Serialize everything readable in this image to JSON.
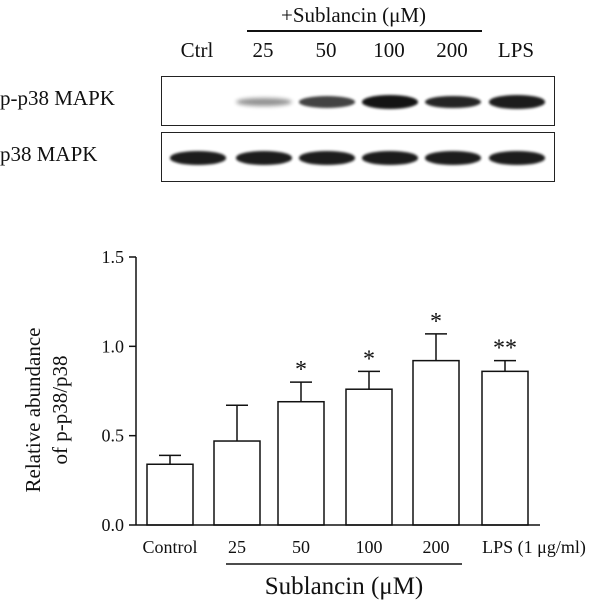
{
  "blot": {
    "treatment_header": "+Sublancin (μM)",
    "lanes": [
      "Ctrl",
      "25",
      "50",
      "100",
      "200",
      "LPS"
    ],
    "rows": [
      {
        "label": "p-p38 MAPK",
        "band_intensity": [
          0.0,
          0.25,
          0.7,
          0.95,
          0.85,
          0.9
        ]
      },
      {
        "label": "p38 MAPK",
        "band_intensity": [
          0.9,
          0.9,
          0.9,
          0.9,
          0.9,
          0.9
        ]
      }
    ]
  },
  "chart_data": {
    "type": "bar",
    "categories": [
      "Control",
      "25",
      "50",
      "100",
      "200",
      "LPS (1 μg/ml)"
    ],
    "values": [
      0.34,
      0.47,
      0.69,
      0.76,
      0.92,
      0.86
    ],
    "errors": [
      0.05,
      0.2,
      0.11,
      0.1,
      0.15,
      0.06
    ],
    "significance": [
      "",
      "",
      "*",
      "*",
      "*",
      "**"
    ],
    "ylabel_line1": "Relative abundance",
    "ylabel_line2": "of p-p38/p38",
    "xlabel": "Sublancin (μM)",
    "ylim": [
      0,
      1.5
    ],
    "yticks": [
      "0.0",
      "0.5",
      "1.0",
      "1.5"
    ],
    "bar_color": "#ffffff",
    "edge_color": "#111111"
  }
}
